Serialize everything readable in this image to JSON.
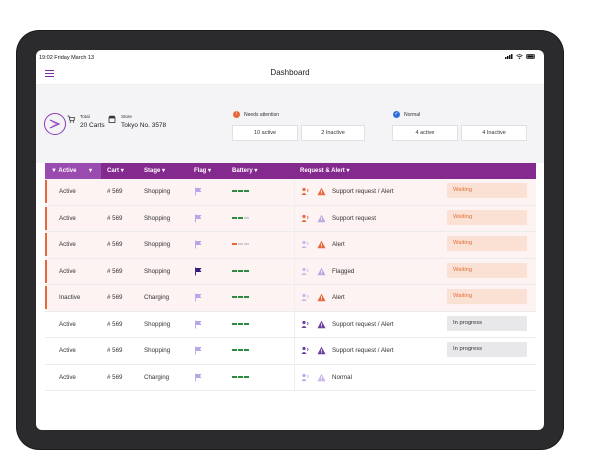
{
  "status_bar": {
    "time": "19:02  Friday March 13"
  },
  "header": {
    "title": "Dashboard"
  },
  "summary": {
    "total": {
      "label": "Total",
      "value": "20 Carts"
    },
    "store": {
      "label": "Store",
      "value": "Tokyo No. 3578"
    },
    "needs_attention": {
      "label": "Needs attention",
      "active": "10 active",
      "inactive": "2 Inactive"
    },
    "normal": {
      "label": "Normal",
      "active": "4 active",
      "inactive": "4 Inactive"
    }
  },
  "table": {
    "columns": [
      "Active",
      "Cart",
      "Stage",
      "Flag",
      "Battery",
      "Request & Alert"
    ],
    "rows": [
      {
        "active": "Active",
        "cart": "# 569",
        "stage": "Shopping",
        "flag": "light",
        "battery": "full",
        "request": "Support request / Alert",
        "status": "Waiting",
        "attn": true
      },
      {
        "active": "Active",
        "cart": "# 569",
        "stage": "Shopping",
        "flag": "light",
        "battery": "mid",
        "request": "Support request",
        "status": "Waiting",
        "attn": true
      },
      {
        "active": "Active",
        "cart": "# 569",
        "stage": "Shopping",
        "flag": "light",
        "battery": "low",
        "request": "Alert",
        "status": "Waiting",
        "attn": true
      },
      {
        "active": "Active",
        "cart": "# 569",
        "stage": "Shopping",
        "flag": "dark",
        "battery": "full",
        "request": "Flagged",
        "status": "Waiting",
        "attn": true
      },
      {
        "active": "Inactive",
        "cart": "# 569",
        "stage": "Charging",
        "flag": "light",
        "battery": "full",
        "request": "Alert",
        "status": "Waiting",
        "attn": true
      },
      {
        "active": "Active",
        "cart": "# 569",
        "stage": "Shopping",
        "flag": "light",
        "battery": "full",
        "request": "Support request / Alert",
        "status": "In progress",
        "attn": false
      },
      {
        "active": "Active",
        "cart": "# 569",
        "stage": "Shopping",
        "flag": "light",
        "battery": "full",
        "request": "Support request / Alert",
        "status": "In progress",
        "attn": false
      },
      {
        "active": "Active",
        "cart": "# 569",
        "stage": "Charging",
        "flag": "light",
        "battery": "full",
        "request": "Normal",
        "status": "",
        "attn": false
      }
    ]
  },
  "colors": {
    "brand": "#84298d",
    "attention": "#e7663a",
    "normal": "#2e6fd8",
    "battery_full": "#2b8a3e",
    "battery_low": "#e7663a"
  }
}
